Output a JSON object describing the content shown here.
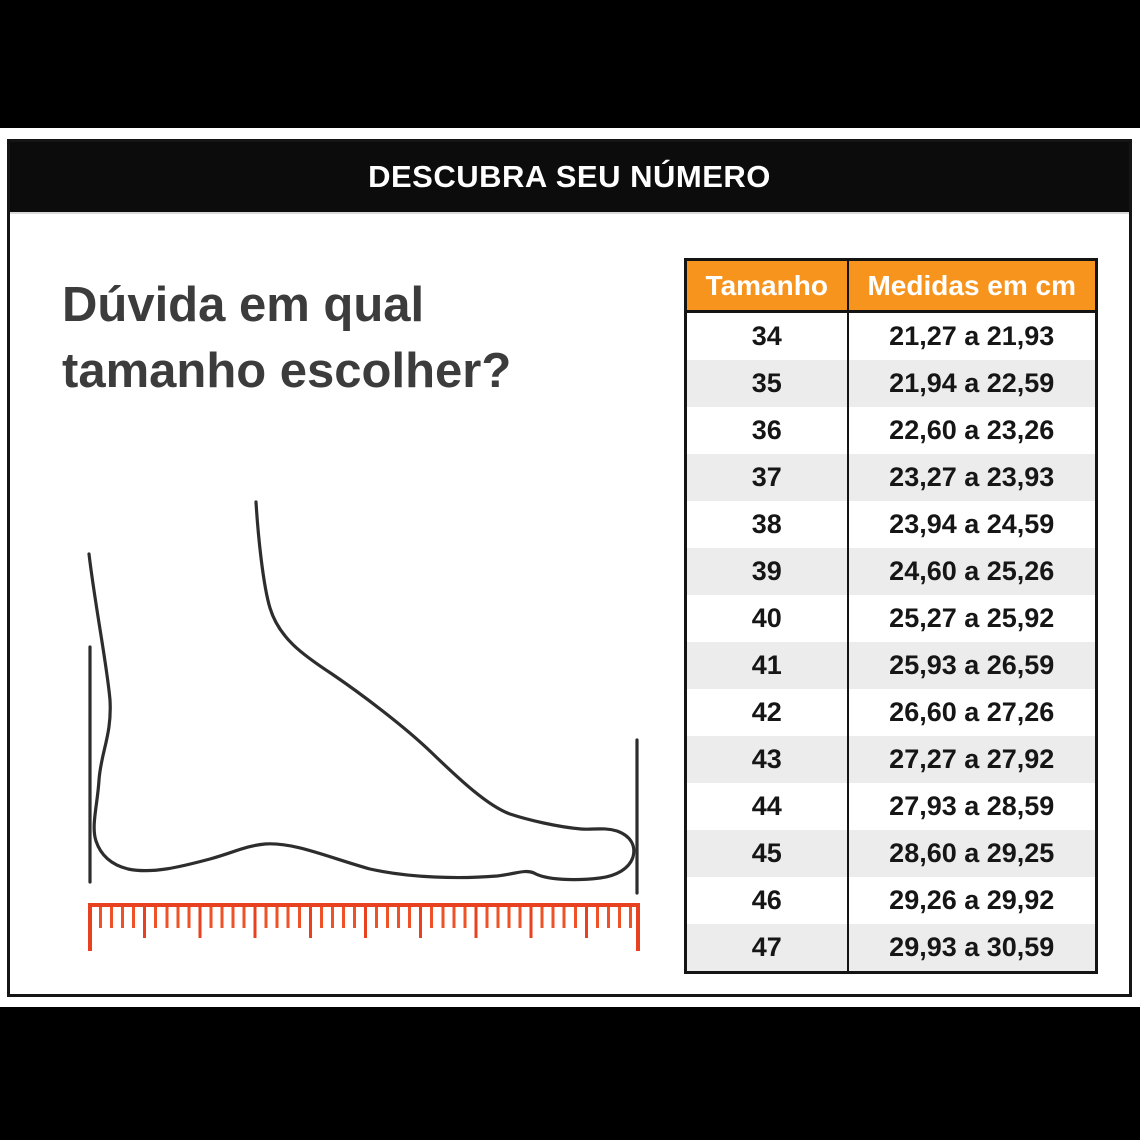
{
  "header": {
    "title": "DESCUBRA SEU NÚMERO"
  },
  "question": {
    "line1": "Dúvida em qual",
    "line2": "tamanho escolher?"
  },
  "illustration": {
    "foot_icon": "foot-side-outline-icon",
    "heel_line_icon": "heel-measure-line-icon",
    "toe_line_icon": "toe-measure-line-icon",
    "ruler_icon": "orange-ruler-ticks-icon"
  },
  "size_table": {
    "columns": [
      "Tamanho",
      "Medidas em cm"
    ],
    "rows": [
      {
        "size": "34",
        "range": "21,27 a 21,93"
      },
      {
        "size": "35",
        "range": "21,94 a 22,59"
      },
      {
        "size": "36",
        "range": "22,60 a 23,26"
      },
      {
        "size": "37",
        "range": "23,27 a 23,93"
      },
      {
        "size": "38",
        "range": "23,94 a 24,59"
      },
      {
        "size": "39",
        "range": "24,60 a 25,26"
      },
      {
        "size": "40",
        "range": "25,27 a 25,92"
      },
      {
        "size": "41",
        "range": "25,93 a 26,59"
      },
      {
        "size": "42",
        "range": "26,60 a 27,26"
      },
      {
        "size": "43",
        "range": "27,27 a 27,92"
      },
      {
        "size": "44",
        "range": "27,93 a 28,59"
      },
      {
        "size": "45",
        "range": "28,60 a 29,25"
      },
      {
        "size": "46",
        "range": "29,26 a 29,92"
      },
      {
        "size": "47",
        "range": "29,93 a 30,59"
      }
    ]
  },
  "colors": {
    "band_black": "#000000",
    "header_bar_black": "#0c0c0c",
    "accent_orange": "#f7941e",
    "ruler_red": "#e8411f",
    "question_text": "#3c3c3c",
    "alt_row_gray": "#ececec"
  },
  "chart_data": {
    "type": "table",
    "title": "DESCUBRA SEU NÚMERO",
    "columns": [
      "Tamanho",
      "Medidas em cm"
    ],
    "rows": [
      [
        "34",
        "21,27 a 21,93"
      ],
      [
        "35",
        "21,94 a 22,59"
      ],
      [
        "36",
        "22,60 a 23,26"
      ],
      [
        "37",
        "23,27 a 23,93"
      ],
      [
        "38",
        "23,94 a 24,59"
      ],
      [
        "39",
        "24,60 a 25,26"
      ],
      [
        "40",
        "25,27 a 25,92"
      ],
      [
        "41",
        "25,93 a 26,59"
      ],
      [
        "42",
        "26,60 a 27,26"
      ],
      [
        "43",
        "27,27 a 27,92"
      ],
      [
        "44",
        "27,93 a 28,59"
      ],
      [
        "45",
        "28,60 a 29,25"
      ],
      [
        "46",
        "29,26 a 29,92"
      ],
      [
        "47",
        "29,93 a 30,59"
      ]
    ]
  }
}
